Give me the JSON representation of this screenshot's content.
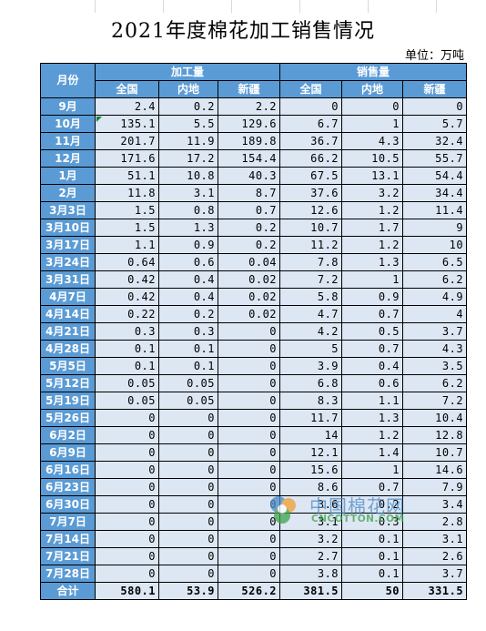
{
  "title": "2021年度棉花加工销售情况",
  "unit_label": "单位：万吨",
  "headers": {
    "month": "月份",
    "processing": "加工量",
    "sales": "销售量",
    "sub": [
      "全国",
      "内地",
      "新疆",
      "全国",
      "内地",
      "新疆"
    ]
  },
  "rows": [
    {
      "month": "9月",
      "values": [
        "2.4",
        "0.2",
        "2.2",
        "0",
        "0",
        "0"
      ]
    },
    {
      "month": "10月",
      "values": [
        "135.1",
        "5.5",
        "129.6",
        "6.7",
        "1",
        "5.7"
      ]
    },
    {
      "month": "11月",
      "values": [
        "201.7",
        "11.9",
        "189.8",
        "36.7",
        "4.3",
        "32.4"
      ]
    },
    {
      "month": "12月",
      "values": [
        "171.6",
        "17.2",
        "154.4",
        "66.2",
        "10.5",
        "55.7"
      ]
    },
    {
      "month": "1月",
      "values": [
        "51.1",
        "10.8",
        "40.3",
        "67.5",
        "13.1",
        "54.4"
      ]
    },
    {
      "month": "2月",
      "values": [
        "11.8",
        "3.1",
        "8.7",
        "37.6",
        "3.2",
        "34.4"
      ]
    },
    {
      "month": "3月3日",
      "values": [
        "1.5",
        "0.8",
        "0.7",
        "12.6",
        "1.2",
        "11.4"
      ]
    },
    {
      "month": "3月10日",
      "values": [
        "1.5",
        "1.3",
        "0.2",
        "10.7",
        "1.7",
        "9"
      ]
    },
    {
      "month": "3月17日",
      "values": [
        "1.1",
        "0.9",
        "0.2",
        "11.2",
        "1.2",
        "10"
      ]
    },
    {
      "month": "3月24日",
      "values": [
        "0.64",
        "0.6",
        "0.04",
        "7.8",
        "1.3",
        "6.5"
      ]
    },
    {
      "month": "3月31日",
      "values": [
        "0.42",
        "0.4",
        "0.02",
        "7.2",
        "1",
        "6.2"
      ]
    },
    {
      "month": "4月7日",
      "values": [
        "0.42",
        "0.4",
        "0.02",
        "5.8",
        "0.9",
        "4.9"
      ]
    },
    {
      "month": "4月14日",
      "values": [
        "0.22",
        "0.2",
        "0.02",
        "4.7",
        "0.7",
        "4"
      ]
    },
    {
      "month": "4月21日",
      "values": [
        "0.3",
        "0.3",
        "0",
        "4.2",
        "0.5",
        "3.7"
      ]
    },
    {
      "month": "4月28日",
      "values": [
        "0.1",
        "0.1",
        "0",
        "5",
        "0.7",
        "4.3"
      ]
    },
    {
      "month": "5月5日",
      "values": [
        "0.1",
        "0.1",
        "0",
        "3.9",
        "0.4",
        "3.5"
      ]
    },
    {
      "month": "5月12日",
      "values": [
        "0.05",
        "0.05",
        "0",
        "6.8",
        "0.6",
        "6.2"
      ]
    },
    {
      "month": "5月19日",
      "values": [
        "0.05",
        "0.05",
        "0",
        "8.3",
        "1.1",
        "7.2"
      ]
    },
    {
      "month": "5月26日",
      "values": [
        "0",
        "0",
        "0",
        "11.7",
        "1.3",
        "10.4"
      ]
    },
    {
      "month": "6月2日",
      "values": [
        "0",
        "0",
        "0",
        "14",
        "1.2",
        "12.8"
      ]
    },
    {
      "month": "6月9日",
      "values": [
        "0",
        "0",
        "0",
        "12.1",
        "1.4",
        "10.7"
      ]
    },
    {
      "month": "6月16日",
      "values": [
        "0",
        "0",
        "0",
        "15.6",
        "1",
        "14.6"
      ]
    },
    {
      "month": "6月23日",
      "values": [
        "0",
        "0",
        "0",
        "8.6",
        "0.7",
        "7.9"
      ]
    },
    {
      "month": "6月30日",
      "values": [
        "0",
        "0",
        "0",
        "3.6",
        "0.2",
        "3.4"
      ]
    },
    {
      "month": "7月7日",
      "values": [
        "0",
        "0",
        "0",
        "3.1",
        "0.3",
        "2.8"
      ]
    },
    {
      "month": "7月14日",
      "values": [
        "0",
        "0",
        "0",
        "3.2",
        "0.1",
        "3.1"
      ]
    },
    {
      "month": "7月21日",
      "values": [
        "0",
        "0",
        "0",
        "2.7",
        "0.1",
        "2.6"
      ]
    },
    {
      "month": "7月28日",
      "values": [
        "0",
        "0",
        "0",
        "3.8",
        "0.1",
        "3.7"
      ]
    }
  ],
  "total": {
    "month": "合计",
    "values": [
      "580.1",
      "53.9",
      "526.2",
      "381.5",
      "50",
      "331.5"
    ]
  },
  "watermark": {
    "cn": "中国棉花网",
    "en": "CNCOTTON.COM"
  },
  "colors": {
    "header_bg": "#5b9bd5",
    "cell_bg": "#dde6f3",
    "watermark_blue": "#4a8cc9",
    "watermark_green": "#3fa34d"
  }
}
